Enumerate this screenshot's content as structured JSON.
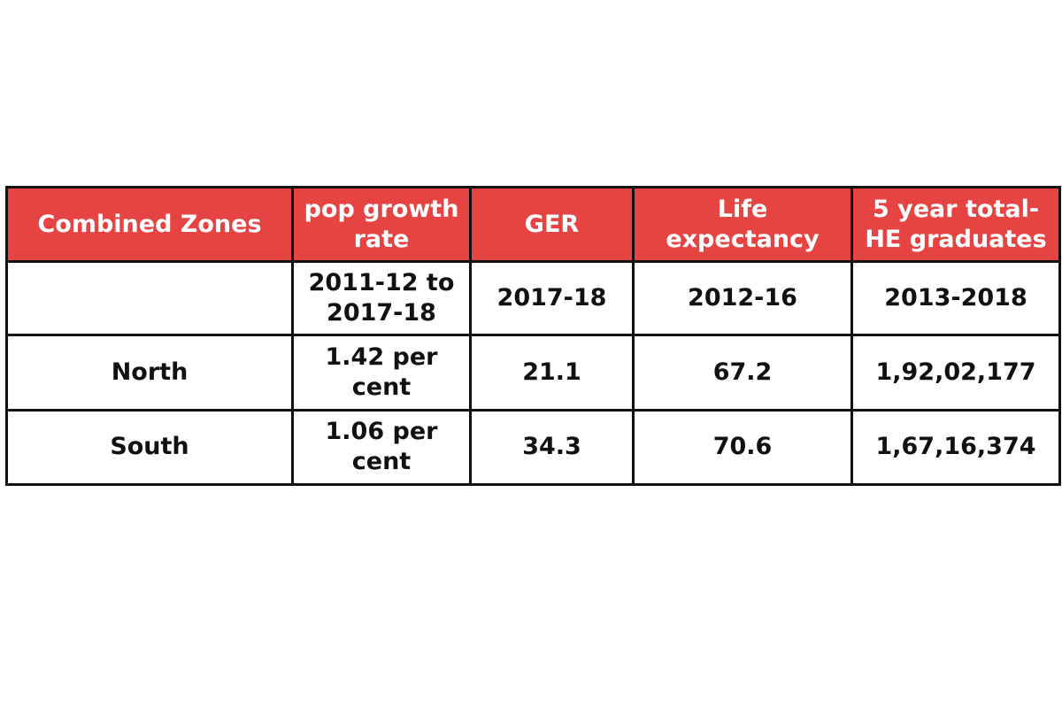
{
  "chart_data": {
    "type": "table",
    "columns": [
      "Combined Zones",
      "pop growth\nrate",
      "GER",
      "Life expectancy",
      "5 year total-\nHE graduates"
    ],
    "period_row": [
      "",
      "2011-12 to\n2017-18",
      "2017-18",
      "2012-16",
      "2013-2018"
    ],
    "rows": [
      [
        "North",
        "1.42 per cent",
        "21.1",
        "67.2",
        "1,92,02,177"
      ],
      [
        "South",
        "1.06 per cent",
        "34.3",
        "70.6",
        "1,67,16,374"
      ]
    ],
    "header_color": "#e64343"
  }
}
